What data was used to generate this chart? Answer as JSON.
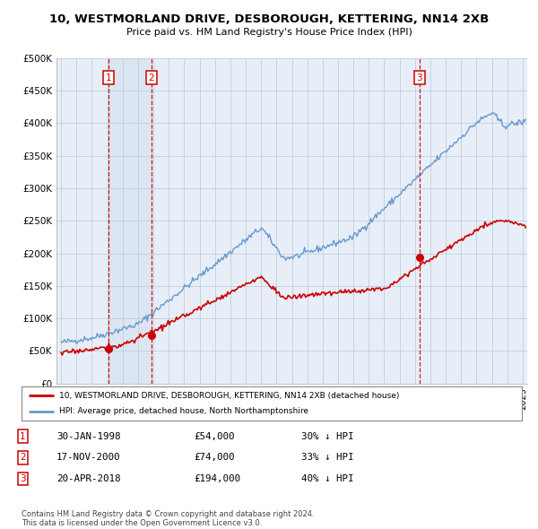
{
  "title": "10, WESTMORLAND DRIVE, DESBOROUGH, KETTERING, NN14 2XB",
  "subtitle": "Price paid vs. HM Land Registry's House Price Index (HPI)",
  "ylabel_ticks": [
    "£0",
    "£50K",
    "£100K",
    "£150K",
    "£200K",
    "£250K",
    "£300K",
    "£350K",
    "£400K",
    "£450K",
    "£500K"
  ],
  "ytick_values": [
    0,
    50000,
    100000,
    150000,
    200000,
    250000,
    300000,
    350000,
    400000,
    450000,
    500000
  ],
  "ylim": [
    0,
    500000
  ],
  "xlim_start": 1994.7,
  "xlim_end": 2025.3,
  "transactions": [
    {
      "num": 1,
      "date_num": 1998.08,
      "price": 54000,
      "pct": "30% ↓ HPI",
      "date_str": "30-JAN-1998",
      "price_str": "£54,000"
    },
    {
      "num": 2,
      "date_num": 2000.88,
      "price": 74000,
      "pct": "33% ↓ HPI",
      "date_str": "17-NOV-2000",
      "price_str": "£74,000"
    },
    {
      "num": 3,
      "date_num": 2018.3,
      "price": 194000,
      "pct": "40% ↓ HPI",
      "date_str": "20-APR-2018",
      "price_str": "£194,000"
    }
  ],
  "legend_line1": "10, WESTMORLAND DRIVE, DESBOROUGH, KETTERING, NN14 2XB (detached house)",
  "legend_line2": "HPI: Average price, detached house, North Northamptonshire",
  "price_color": "#cc0000",
  "hpi_color": "#6699cc",
  "footer": "Contains HM Land Registry data © Crown copyright and database right 2024.\nThis data is licensed under the Open Government Licence v3.0.",
  "background_color": "#e8eef8",
  "highlight_color": "#d8e4f0"
}
